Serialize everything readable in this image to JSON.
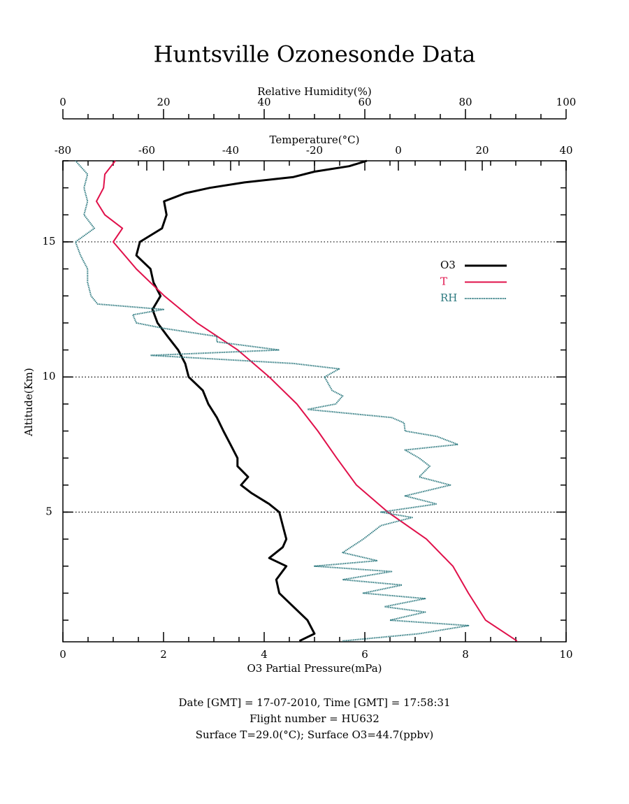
{
  "chart_data": {
    "type": "line",
    "title": "Huntsville Ozonesonde Data",
    "xlabel": "O3 Partial Pressure(mPa)",
    "xlim": [
      0,
      10
    ],
    "xticks": [
      0,
      2,
      4,
      6,
      8,
      10
    ],
    "x2label": "Temperature(°C)",
    "x2lim": [
      -80,
      40
    ],
    "x2ticks": [
      -80,
      -60,
      -40,
      -20,
      0,
      20,
      40
    ],
    "x3label": "Relative Humidity(%)",
    "x3lim": [
      0,
      100
    ],
    "x3ticks": [
      0,
      20,
      40,
      60,
      80,
      100
    ],
    "ylabel": "Altitude(Km)",
    "ylim": [
      0.2,
      18
    ],
    "yticks": [
      5,
      10,
      15
    ],
    "grid": true,
    "series": [
      {
        "name": "O3",
        "color": "#000000",
        "axis": "x",
        "altitude": [
          0.23,
          0.5,
          1,
          1.5,
          2,
          2.5,
          3,
          3.3,
          3.7,
          4,
          4.5,
          5,
          5.3,
          5.7,
          6,
          6.3,
          6.7,
          7,
          7.5,
          8,
          8.5,
          9,
          9.5,
          10,
          10.5,
          11,
          11.5,
          12,
          12.5,
          13,
          13.5,
          14,
          14.5,
          15,
          15.5,
          16,
          16.5,
          16.8,
          17,
          17.2,
          17.4,
          17.6,
          17.8,
          18
        ],
        "values": [
          4.7,
          5.0,
          4.86,
          4.58,
          4.3,
          4.24,
          4.44,
          4.1,
          4.37,
          4.44,
          4.37,
          4.3,
          4.1,
          3.75,
          3.54,
          3.68,
          3.47,
          3.47,
          3.33,
          3.19,
          3.06,
          2.89,
          2.78,
          2.5,
          2.43,
          2.29,
          2.08,
          1.88,
          1.78,
          1.94,
          1.8,
          1.74,
          1.46,
          1.53,
          1.97,
          2.06,
          2.01,
          2.43,
          2.92,
          3.61,
          4.58,
          5.0,
          5.69,
          6.04
        ]
      },
      {
        "name": "T",
        "color": "#e0104a",
        "axis": "x2",
        "altitude": [
          0.23,
          1,
          2,
          3,
          4,
          5,
          6,
          7,
          8,
          9,
          10,
          11,
          12,
          13,
          14,
          15,
          15.5,
          16,
          16.5,
          17,
          17.5,
          18
        ],
        "values": [
          28.3,
          20.8,
          16.7,
          13,
          6.7,
          -2.5,
          -10,
          -14.7,
          -19.2,
          -24.2,
          -30.8,
          -38.3,
          -48,
          -55.8,
          -62.5,
          -68,
          -65.8,
          -70,
          -72,
          -70.3,
          -70,
          -67.5
        ]
      },
      {
        "name": "RH",
        "color": "#2e7a80",
        "axis": "x3",
        "altitude": [
          0.23,
          0.5,
          0.8,
          1,
          1.3,
          1.5,
          1.8,
          2,
          2.3,
          2.5,
          2.8,
          3,
          3.2,
          3.5,
          4,
          4.5,
          4.8,
          5,
          5.3,
          5.6,
          6,
          6.3,
          6.7,
          7,
          7.3,
          7.5,
          7.8,
          8,
          8.3,
          8.5,
          8.8,
          9,
          9.3,
          9.5,
          10,
          10.3,
          10.5,
          10.8,
          11,
          11.3,
          11.5,
          11.8,
          12,
          12.3,
          12.5,
          12.7,
          13,
          13.5,
          14,
          14.5,
          15,
          15.5,
          16,
          16.5,
          17,
          17.5,
          18
        ],
        "values": [
          55.6,
          70.8,
          80.6,
          65,
          72,
          63.9,
          72,
          59.7,
          67.4,
          55.6,
          65.3,
          50,
          62.5,
          55.6,
          59.7,
          63.2,
          69.4,
          63.2,
          74.3,
          68,
          77,
          70.8,
          72.9,
          70.8,
          68,
          78.5,
          74.3,
          68,
          67.8,
          65.3,
          48.6,
          54.2,
          55.6,
          53.5,
          52,
          54.9,
          45.8,
          17.4,
          43,
          30.6,
          30.6,
          20,
          14.6,
          13.9,
          20,
          6.9,
          5.6,
          4.9,
          4.9,
          3.5,
          2.5,
          6.25,
          4.2,
          4.9,
          4.2,
          4.9,
          2.5
        ]
      }
    ],
    "footer": [
      "Date [GMT] = 17-07-2010,  Time [GMT] = 17:58:31",
      "Flight number = HU632",
      "Surface T=29.0(°C); Surface O3=44.7(ppbv)"
    ]
  }
}
